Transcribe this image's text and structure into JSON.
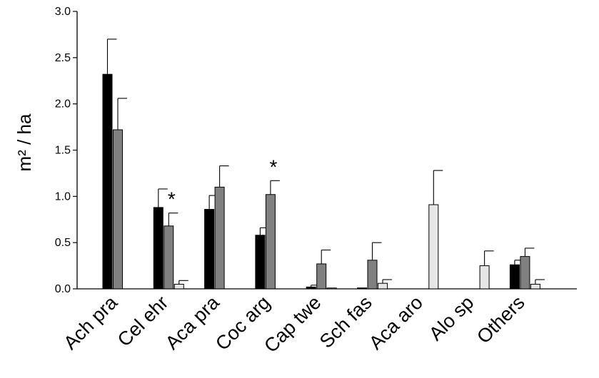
{
  "chart_data": {
    "type": "bar",
    "ylabel": "m² / ha",
    "ylim": [
      0,
      3.0
    ],
    "yticks": [
      "0.0",
      "0.5",
      "1.0",
      "1.5",
      "2.0",
      "2.5",
      "3.0"
    ],
    "categories": [
      "Ach pra",
      "Cel ehr",
      "Aca pra",
      "Coc arg",
      "Cap twe",
      "Sch fas",
      "Aca aro",
      "Alo sp",
      "Others"
    ],
    "series": [
      {
        "color": "#000000",
        "values": [
          2.32,
          0.88,
          0.86,
          0.58,
          0.02,
          0.01,
          null,
          null,
          0.26
        ],
        "errors": [
          0.38,
          0.2,
          0.15,
          0.08,
          0.02,
          0.0,
          null,
          null,
          0.05
        ]
      },
      {
        "color": "#808080",
        "values": [
          1.72,
          0.68,
          1.1,
          1.02,
          0.27,
          0.31,
          null,
          null,
          0.35
        ],
        "errors": [
          0.34,
          0.14,
          0.23,
          0.15,
          0.15,
          0.19,
          null,
          null,
          0.09
        ]
      },
      {
        "color": "#e6e6e6",
        "values": [
          null,
          0.05,
          null,
          null,
          0.005,
          0.06,
          0.91,
          0.25,
          0.05
        ],
        "errors": [
          null,
          0.04,
          null,
          null,
          0.0,
          0.04,
          0.37,
          0.16,
          0.05
        ]
      }
    ],
    "annotations": [
      {
        "category": "Cel ehr",
        "text": "*"
      },
      {
        "category": "Coc arg",
        "text": "*"
      }
    ]
  }
}
